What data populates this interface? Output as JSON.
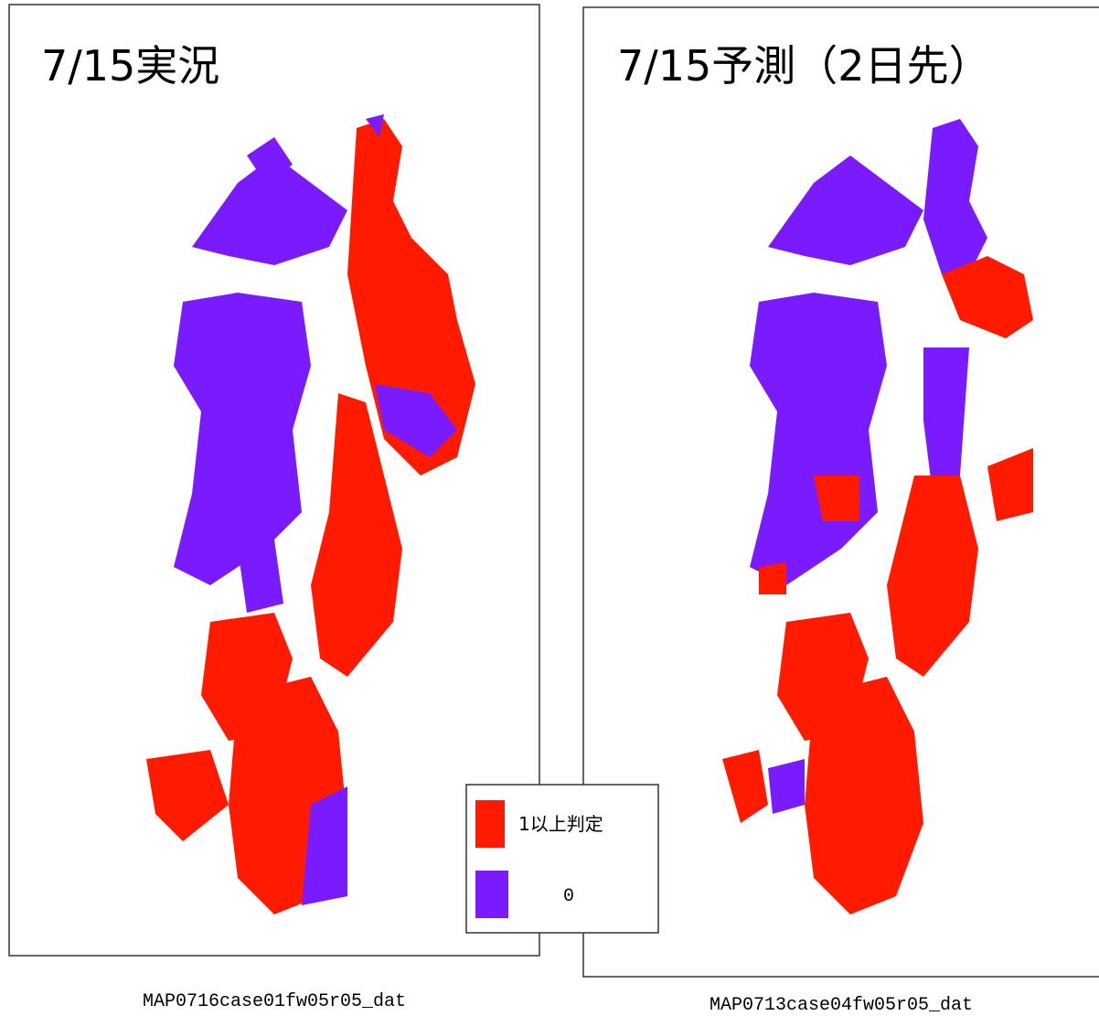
{
  "panels": [
    {
      "title": "7/15実況",
      "caption": "MAP0716case01fw05r05_dat"
    },
    {
      "title": "7/15予測（2日先）",
      "caption": "MAP0713case04fw05r05_dat"
    }
  ],
  "legend": {
    "items": [
      {
        "label": "1以上判定",
        "color": "#ff1a00"
      },
      {
        "label": "0",
        "color": "#7a1aff"
      }
    ]
  }
}
